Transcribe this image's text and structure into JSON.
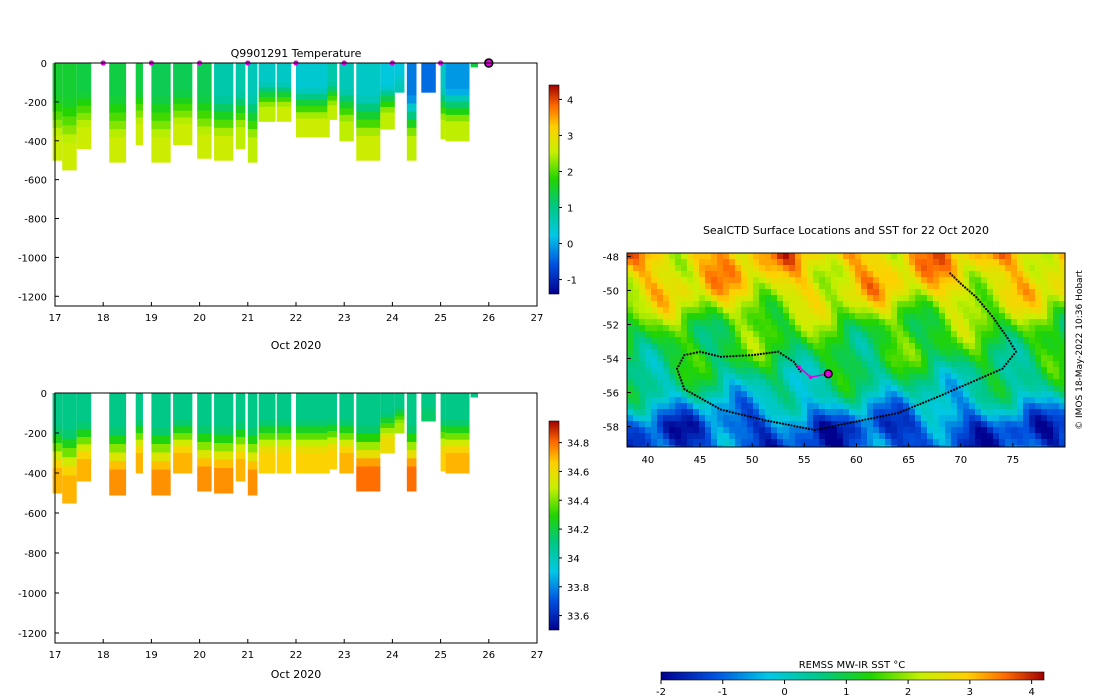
{
  "panels": {
    "temperature": {
      "title": "Q9901291  Temperature",
      "xlabel": "Oct 2020",
      "xticks": [
        "17",
        "18",
        "19",
        "20",
        "21",
        "22",
        "23",
        "24",
        "25",
        "26",
        "27"
      ],
      "yticks": [
        "0",
        "-200",
        "-400",
        "-600",
        "-800",
        "-1000",
        "-1200"
      ],
      "colorbar_ticks": [
        "4",
        "3",
        "2",
        "1",
        "0",
        "-1"
      ]
    },
    "salinity": {
      "xlabel": "Oct 2020",
      "xticks": [
        "17",
        "18",
        "19",
        "20",
        "21",
        "22",
        "23",
        "24",
        "25",
        "26",
        "27"
      ],
      "yticks": [
        "0",
        "-200",
        "-400",
        "-600",
        "-800",
        "-1000",
        "-1200"
      ],
      "colorbar_ticks": [
        "34.8",
        "34.6",
        "34.4",
        "34.2",
        "34",
        "33.8",
        "33.6"
      ]
    },
    "map": {
      "title": "SealCTD Surface Locations and SST for 22 Oct 2020",
      "xticks": [
        "40",
        "45",
        "50",
        "55",
        "60",
        "65",
        "70",
        "75"
      ],
      "yticks": [
        "-48",
        "-50",
        "-52",
        "-54",
        "-56",
        "-58"
      ],
      "credit": "© IMOS 18-May-2022 10:36 Hobart",
      "colorbar_label": "REMSS MW-IR SST °C",
      "colorbar_ticks": [
        "-2",
        "-1",
        "0",
        "1",
        "2",
        "3",
        "4"
      ]
    }
  },
  "chart_data": [
    {
      "type": "heatmap",
      "title": "Q9901291  Temperature",
      "xlabel": "Oct 2020",
      "ylabel": "",
      "xlim": [
        17,
        27
      ],
      "ylim": [
        -1250,
        0
      ],
      "clim": [
        -1.4,
        4.4
      ],
      "units": "°C",
      "profiles": [
        {
          "day": 17.05,
          "width": 0.2,
          "max_depth": 500,
          "surface": 1.5,
          "bottom": 2.6
        },
        {
          "day": 17.3,
          "width": 0.3,
          "max_depth": 550,
          "surface": 1.5,
          "bottom": 2.6
        },
        {
          "day": 17.6,
          "width": 0.3,
          "max_depth": 440,
          "surface": 1.4,
          "bottom": 2.6
        },
        {
          "day": 18.3,
          "width": 0.35,
          "max_depth": 510,
          "surface": 1.4,
          "bottom": 2.6
        },
        {
          "day": 18.75,
          "width": 0.15,
          "max_depth": 420,
          "surface": 1.4,
          "bottom": 2.6
        },
        {
          "day": 19.2,
          "width": 0.4,
          "max_depth": 510,
          "surface": 1.3,
          "bottom": 2.6
        },
        {
          "day": 19.65,
          "width": 0.4,
          "max_depth": 420,
          "surface": 1.3,
          "bottom": 2.6
        },
        {
          "day": 20.1,
          "width": 0.3,
          "max_depth": 490,
          "surface": 1.3,
          "bottom": 2.6
        },
        {
          "day": 20.5,
          "width": 0.4,
          "max_depth": 500,
          "surface": 0.7,
          "bottom": 2.6
        },
        {
          "day": 20.85,
          "width": 0.2,
          "max_depth": 440,
          "surface": 0.7,
          "bottom": 2.5
        },
        {
          "day": 21.1,
          "width": 0.2,
          "max_depth": 510,
          "surface": 0.6,
          "bottom": 2.5
        },
        {
          "day": 21.4,
          "width": 0.35,
          "max_depth": 300,
          "surface": 0.5,
          "bottom": 2.5
        },
        {
          "day": 21.75,
          "width": 0.3,
          "max_depth": 300,
          "surface": 0.5,
          "bottom": 2.6
        },
        {
          "day": 22.35,
          "width": 0.7,
          "max_depth": 380,
          "surface": 0.4,
          "bottom": 2.6
        },
        {
          "day": 22.75,
          "width": 0.2,
          "max_depth": 290,
          "surface": 0.7,
          "bottom": 2.5
        },
        {
          "day": 23.05,
          "width": 0.3,
          "max_depth": 400,
          "surface": 0.6,
          "bottom": 2.5
        },
        {
          "day": 23.5,
          "width": 0.5,
          "max_depth": 500,
          "surface": 0.5,
          "bottom": 2.6
        },
        {
          "day": 23.9,
          "width": 0.3,
          "max_depth": 340,
          "surface": 0.3,
          "bottom": 2.5
        },
        {
          "day": 24.15,
          "width": 0.2,
          "max_depth": 150,
          "surface": 0.3,
          "bottom": 0.6
        },
        {
          "day": 24.4,
          "width": 0.2,
          "max_depth": 500,
          "surface": -0.3,
          "bottom": 2.5
        },
        {
          "day": 24.75,
          "width": 0.3,
          "max_depth": 150,
          "surface": -0.4,
          "bottom": -0.4
        },
        {
          "day": 25.05,
          "width": 0.1,
          "max_depth": 390,
          "surface": 0.5,
          "bottom": 2.5
        },
        {
          "day": 25.35,
          "width": 0.5,
          "max_depth": 400,
          "surface": -0.1,
          "bottom": 2.5
        },
        {
          "day": 25.7,
          "width": 0.15,
          "max_depth": 20,
          "surface": 1.4,
          "bottom": 1.4
        }
      ],
      "markers": [
        18,
        19,
        20,
        21,
        22,
        23,
        24,
        25
      ],
      "last_position_day": 26
    },
    {
      "type": "heatmap",
      "title": "",
      "xlabel": "Oct 2020",
      "ylabel": "",
      "xlim": [
        17,
        27
      ],
      "ylim": [
        -1250,
        0
      ],
      "clim": [
        33.5,
        34.95
      ],
      "units": "PSU",
      "profiles": [
        {
          "day": 17.05,
          "width": 0.2,
          "max_depth": 500,
          "surface": 34.1,
          "bottom": 34.7
        },
        {
          "day": 17.3,
          "width": 0.3,
          "max_depth": 550,
          "surface": 34.1,
          "bottom": 34.7
        },
        {
          "day": 17.6,
          "width": 0.3,
          "max_depth": 440,
          "surface": 34.1,
          "bottom": 34.7
        },
        {
          "day": 18.3,
          "width": 0.35,
          "max_depth": 510,
          "surface": 34.1,
          "bottom": 34.75
        },
        {
          "day": 18.75,
          "width": 0.15,
          "max_depth": 400,
          "surface": 34.1,
          "bottom": 34.7
        },
        {
          "day": 19.2,
          "width": 0.4,
          "max_depth": 510,
          "surface": 34.1,
          "bottom": 34.75
        },
        {
          "day": 19.65,
          "width": 0.4,
          "max_depth": 400,
          "surface": 34.1,
          "bottom": 34.7
        },
        {
          "day": 20.1,
          "width": 0.3,
          "max_depth": 490,
          "surface": 34.1,
          "bottom": 34.75
        },
        {
          "day": 20.5,
          "width": 0.4,
          "max_depth": 500,
          "surface": 34.1,
          "bottom": 34.75
        },
        {
          "day": 20.85,
          "width": 0.2,
          "max_depth": 440,
          "surface": 34.1,
          "bottom": 34.7
        },
        {
          "day": 21.1,
          "width": 0.2,
          "max_depth": 510,
          "surface": 34.1,
          "bottom": 34.75
        },
        {
          "day": 21.4,
          "width": 0.35,
          "max_depth": 400,
          "surface": 34.1,
          "bottom": 34.65
        },
        {
          "day": 21.75,
          "width": 0.3,
          "max_depth": 400,
          "surface": 34.1,
          "bottom": 34.65
        },
        {
          "day": 22.35,
          "width": 0.7,
          "max_depth": 400,
          "surface": 34.1,
          "bottom": 34.65
        },
        {
          "day": 22.75,
          "width": 0.2,
          "max_depth": 380,
          "surface": 34.1,
          "bottom": 34.65
        },
        {
          "day": 23.05,
          "width": 0.3,
          "max_depth": 400,
          "surface": 34.1,
          "bottom": 34.7
        },
        {
          "day": 23.5,
          "width": 0.5,
          "max_depth": 490,
          "surface": 34.1,
          "bottom": 34.8
        },
        {
          "day": 23.9,
          "width": 0.3,
          "max_depth": 300,
          "surface": 34.1,
          "bottom": 34.6
        },
        {
          "day": 24.15,
          "width": 0.2,
          "max_depth": 200,
          "surface": 34.1,
          "bottom": 34.45
        },
        {
          "day": 24.4,
          "width": 0.2,
          "max_depth": 490,
          "surface": 34.1,
          "bottom": 34.8
        },
        {
          "day": 24.75,
          "width": 0.3,
          "max_depth": 140,
          "surface": 34.1,
          "bottom": 34.15
        },
        {
          "day": 25.05,
          "width": 0.1,
          "max_depth": 390,
          "surface": 34.1,
          "bottom": 34.65
        },
        {
          "day": 25.35,
          "width": 0.5,
          "max_depth": 400,
          "surface": 34.1,
          "bottom": 34.7
        },
        {
          "day": 25.7,
          "width": 0.15,
          "max_depth": 20,
          "surface": 34.1,
          "bottom": 34.1
        }
      ]
    },
    {
      "type": "heatmap",
      "title": "SealCTD Surface Locations and SST for 22 Oct 2020",
      "xlabel": "",
      "ylabel": "",
      "xlim": [
        38,
        80
      ],
      "ylim": [
        -59.2,
        -47.8
      ],
      "clim": [
        -2,
        4.2
      ],
      "units": "°C",
      "sst_by_latitude": [
        {
          "lat": -48,
          "sst": 3.0
        },
        {
          "lat": -50,
          "sst": 2.6
        },
        {
          "lat": -52,
          "sst": 1.5
        },
        {
          "lat": -54,
          "sst": 1.0
        },
        {
          "lat": -56,
          "sst": 0.2
        },
        {
          "lat": -58,
          "sst": -1.2
        }
      ],
      "track_lonlat": [
        [
          69,
          -49
        ],
        [
          70,
          -49.6
        ],
        [
          71.5,
          -50.4
        ],
        [
          73,
          -51.5
        ],
        [
          74.5,
          -52.8
        ],
        [
          75.3,
          -53.6
        ],
        [
          74,
          -54.6
        ],
        [
          71,
          -55.4
        ],
        [
          68,
          -56.2
        ],
        [
          64,
          -57.2
        ],
        [
          60,
          -57.7
        ],
        [
          56,
          -58.2
        ],
        [
          51,
          -57.6
        ],
        [
          47,
          -57
        ],
        [
          43.5,
          -55.8
        ],
        [
          42.8,
          -54.6
        ],
        [
          43.5,
          -53.8
        ],
        [
          45,
          -53.6
        ],
        [
          47,
          -53.9
        ],
        [
          50,
          -53.8
        ],
        [
          52.5,
          -53.6
        ],
        [
          54,
          -54.2
        ],
        [
          54.8,
          -54.9
        ]
      ],
      "recent_track_lonlat": [
        [
          54.5,
          -54.5
        ],
        [
          55.6,
          -55.1
        ],
        [
          57.3,
          -54.9
        ]
      ],
      "last_position": [
        57.3,
        -54.9
      ]
    }
  ]
}
